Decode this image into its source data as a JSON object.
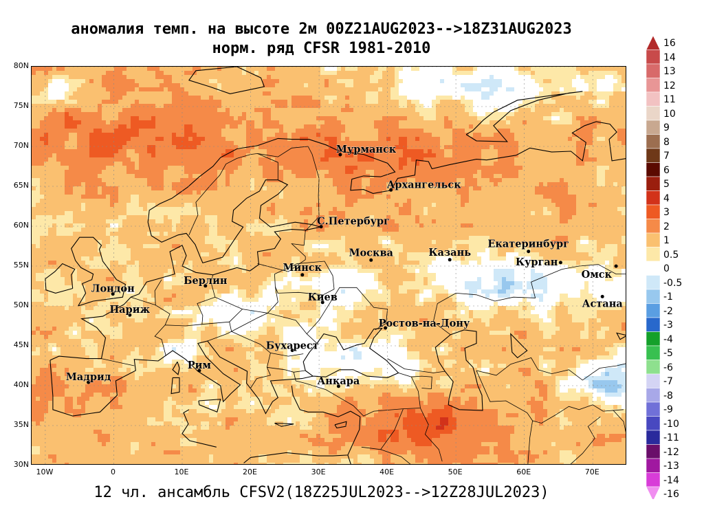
{
  "header": {
    "title_line1": "аномалия темп. на высоте 2м 00Z21AUG2023-->18Z31AUG2023",
    "title_line2": "норм. ряд CFSR 1981-2010"
  },
  "footer": {
    "text": "12 чл. ансамбль CFSV2(18Z25JUL2023-->12Z28JUL2023)"
  },
  "map": {
    "lon_range": [
      -12,
      75
    ],
    "lat_range": [
      30,
      80
    ],
    "lat_ticks": [
      {
        "value": 80,
        "label": "80N"
      },
      {
        "value": 75,
        "label": "75N"
      },
      {
        "value": 70,
        "label": "70N"
      },
      {
        "value": 65,
        "label": "65N"
      },
      {
        "value": 60,
        "label": "60N"
      },
      {
        "value": 55,
        "label": "55N"
      },
      {
        "value": 50,
        "label": "50N"
      },
      {
        "value": 45,
        "label": "45N"
      },
      {
        "value": 40,
        "label": "40N"
      },
      {
        "value": 35,
        "label": "35N"
      },
      {
        "value": 30,
        "label": "30N"
      }
    ],
    "lon_ticks": [
      {
        "value": -10,
        "label": "10W"
      },
      {
        "value": 0,
        "label": "0"
      },
      {
        "value": 10,
        "label": "10E"
      },
      {
        "value": 20,
        "label": "20E"
      },
      {
        "value": 30,
        "label": "30E"
      },
      {
        "value": 40,
        "label": "40E"
      },
      {
        "value": 50,
        "label": "50E"
      },
      {
        "value": 60,
        "label": "60E"
      },
      {
        "value": 70,
        "label": "70E"
      }
    ],
    "cities": [
      {
        "name": "Мурманск",
        "lon": 33.1,
        "lat": 68.97
      },
      {
        "name": "Архангельск",
        "lon": 40.5,
        "lat": 64.54
      },
      {
        "name": "С.Петербург",
        "lon": 30.3,
        "lat": 59.94
      },
      {
        "name": "Москва",
        "lon": 37.6,
        "lat": 55.75
      },
      {
        "name": "Казань",
        "lon": 49.1,
        "lat": 55.79
      },
      {
        "name": "Екатеринбург",
        "lon": 60.6,
        "lat": 56.84
      },
      {
        "name": "Курган",
        "lon": 65.3,
        "lat": 55.44
      },
      {
        "name": "Омск",
        "lon": 73.4,
        "lat": 54.99
      },
      {
        "name": "Астана",
        "lon": 71.4,
        "lat": 51.17
      },
      {
        "name": "Минск",
        "lon": 27.56,
        "lat": 53.9
      },
      {
        "name": "Киев",
        "lon": 30.52,
        "lat": 50.45
      },
      {
        "name": "Берлин",
        "lon": 13.4,
        "lat": 52.52
      },
      {
        "name": "Лондон",
        "lon": -0.13,
        "lat": 51.5
      },
      {
        "name": "Париж",
        "lon": 2.35,
        "lat": 48.86
      },
      {
        "name": "Ростов-на-Дону",
        "lon": 39.7,
        "lat": 47.24
      },
      {
        "name": "Бухарест",
        "lon": 26.1,
        "lat": 44.43
      },
      {
        "name": "Рим",
        "lon": 12.5,
        "lat": 41.9
      },
      {
        "name": "Мадрид",
        "lon": -3.7,
        "lat": 40.42
      },
      {
        "name": "Анкара",
        "lon": 32.85,
        "lat": 39.93
      }
    ]
  },
  "colorbar": {
    "levels": [
      {
        "label": "16",
        "value": 16,
        "color": "#b22a2a"
      },
      {
        "label": "14",
        "value": 14,
        "color": "#c84a4a"
      },
      {
        "label": "13",
        "value": 13,
        "color": "#d86a6a"
      },
      {
        "label": "12",
        "value": 12,
        "color": "#e89696"
      },
      {
        "label": "11",
        "value": 11,
        "color": "#f2c2c2"
      },
      {
        "label": "10",
        "value": 10,
        "color": "#ead6c8"
      },
      {
        "label": "9",
        "value": 9,
        "color": "#c8a890"
      },
      {
        "label": "8",
        "value": 8,
        "color": "#9c6e50"
      },
      {
        "label": "7",
        "value": 7,
        "color": "#6e3818"
      },
      {
        "label": "6",
        "value": 6,
        "color": "#5a0a00"
      },
      {
        "label": "5",
        "value": 5,
        "color": "#9a1e0e"
      },
      {
        "label": "4",
        "value": 4,
        "color": "#d2321a"
      },
      {
        "label": "3",
        "value": 3,
        "color": "#ee5a23"
      },
      {
        "label": "2",
        "value": 2,
        "color": "#f58a48"
      },
      {
        "label": "1",
        "value": 1,
        "color": "#fac070"
      },
      {
        "label": "0.5",
        "value": 0.5,
        "color": "#fde8a8"
      },
      {
        "label": "0",
        "value": 0,
        "color": "#ffffff"
      },
      {
        "label": "-0.5",
        "value": -0.5,
        "color": "#cfe8f8"
      },
      {
        "label": "-1",
        "value": -1,
        "color": "#98c8ee"
      },
      {
        "label": "-2",
        "value": -2,
        "color": "#5a9ee2"
      },
      {
        "label": "-3",
        "value": -3,
        "color": "#2868cc"
      },
      {
        "label": "-4",
        "value": -4,
        "color": "#14a02a"
      },
      {
        "label": "-5",
        "value": -5,
        "color": "#38c050"
      },
      {
        "label": "-6",
        "value": -6,
        "color": "#8ee08e"
      },
      {
        "label": "-7",
        "value": -7,
        "color": "#d4d4f4"
      },
      {
        "label": "-8",
        "value": -8,
        "color": "#a8a8e8"
      },
      {
        "label": "-9",
        "value": -9,
        "color": "#7070d8"
      },
      {
        "label": "-10",
        "value": -10,
        "color": "#4848c0"
      },
      {
        "label": "-11",
        "value": -11,
        "color": "#2a2a9c"
      },
      {
        "label": "-12",
        "value": -12,
        "color": "#6a0e6a"
      },
      {
        "label": "-13",
        "value": -13,
        "color": "#a018a0"
      },
      {
        "label": "-14",
        "value": -14,
        "color": "#d83cd8"
      },
      {
        "label": "-16",
        "value": -16,
        "color": "#f08ef0"
      }
    ]
  }
}
